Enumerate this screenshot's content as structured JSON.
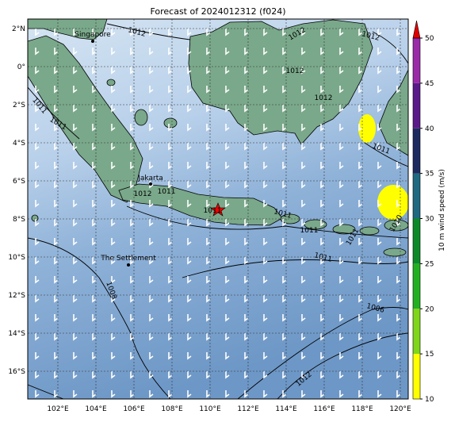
{
  "title": "Forecast of 2024012312 (f024)",
  "map": {
    "lon_ticks": [
      {
        "value": 102,
        "label": "102°E"
      },
      {
        "value": 104,
        "label": "104°E"
      },
      {
        "value": 106,
        "label": "106°E"
      },
      {
        "value": 108,
        "label": "108°E"
      },
      {
        "value": 110,
        "label": "110°E"
      },
      {
        "value": 112,
        "label": "112°E"
      },
      {
        "value": 114,
        "label": "114°E"
      },
      {
        "value": 116,
        "label": "116°E"
      },
      {
        "value": 118,
        "label": "118°E"
      },
      {
        "value": 120,
        "label": "120°E"
      }
    ],
    "lat_ticks": [
      {
        "value": 2,
        "label": "2°N"
      },
      {
        "value": 0,
        "label": "0°"
      },
      {
        "value": -2,
        "label": "2°S"
      },
      {
        "value": -4,
        "label": "4°S"
      },
      {
        "value": -6,
        "label": "6°S"
      },
      {
        "value": -8,
        "label": "8°S"
      },
      {
        "value": -10,
        "label": "10°S"
      },
      {
        "value": -12,
        "label": "12°S"
      },
      {
        "value": -14,
        "label": "14°S"
      },
      {
        "value": -16,
        "label": "16°S"
      }
    ],
    "places": [
      "Singapore",
      "Jakarta",
      "The Settlement"
    ],
    "contour_labels": [
      "1012",
      "1012",
      "1012",
      "1012",
      "1012",
      "1011",
      "1011",
      "1011",
      "1012",
      "1011",
      "1011",
      "1011",
      "1011",
      "1011",
      "1010",
      "1011",
      "1008",
      "1006",
      "1012"
    ]
  },
  "colorbar": {
    "label": "10 m wind speed (m/s)",
    "ticks": [
      10,
      15,
      20,
      25,
      30,
      35,
      40,
      45,
      50
    ],
    "colors": [
      "#ffff00",
      "#7fd61a",
      "#22b022",
      "#0d8a28",
      "#1f6a80",
      "#1c2a60",
      "#5a1a8a",
      "#9a2aa8"
    ],
    "extend_color": "#e00000"
  }
}
